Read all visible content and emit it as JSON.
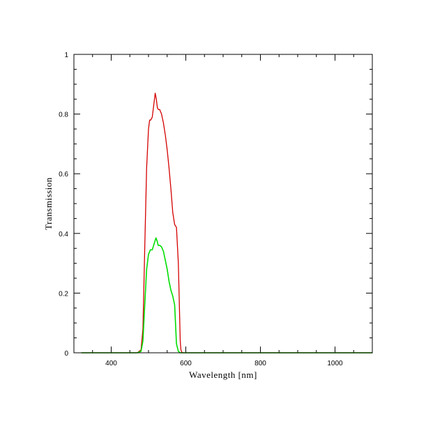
{
  "chart_data": {
    "type": "line",
    "title": "",
    "xlabel": "Wavelength [nm]",
    "ylabel": "Transmission",
    "xlim": [
      300,
      1100
    ],
    "ylim": [
      0,
      1
    ],
    "xticks": [
      400,
      600,
      800,
      1000
    ],
    "xtick_labels": [
      "400",
      "600",
      "800",
      "1000"
    ],
    "yticks": [
      0,
      0.2,
      0.4,
      0.6,
      0.8,
      1
    ],
    "ytick_labels": [
      "0",
      "0.2",
      "0.4",
      "0.6",
      "0.8",
      "1"
    ],
    "grid": false,
    "series": [
      {
        "color": "#d40000",
        "x": [
          320,
          470,
          480,
          485,
          490,
          495,
          500,
          503,
          506,
          510,
          514,
          518,
          521,
          524,
          527,
          530,
          535,
          540,
          545,
          550,
          555,
          560,
          565,
          570,
          575,
          580,
          585,
          587,
          590,
          593,
          600,
          1100
        ],
        "y": [
          0,
          0,
          0.01,
          0.08,
          0.35,
          0.62,
          0.75,
          0.78,
          0.78,
          0.79,
          0.83,
          0.87,
          0.85,
          0.82,
          0.815,
          0.815,
          0.8,
          0.77,
          0.73,
          0.68,
          0.62,
          0.55,
          0.47,
          0.43,
          0.42,
          0.3,
          0.04,
          0.01,
          0,
          0,
          0,
          0
        ]
      },
      {
        "color": "#00dd00",
        "x": [
          320,
          470,
          480,
          485,
          490,
          495,
          500,
          505,
          510,
          515,
          520,
          523,
          526,
          530,
          535,
          540,
          545,
          550,
          555,
          560,
          565,
          570,
          575,
          580,
          585,
          587,
          590,
          593,
          600,
          1100
        ],
        "y": [
          0,
          0,
          0.005,
          0.04,
          0.16,
          0.28,
          0.33,
          0.345,
          0.345,
          0.365,
          0.385,
          0.375,
          0.36,
          0.36,
          0.355,
          0.34,
          0.31,
          0.28,
          0.24,
          0.21,
          0.19,
          0.16,
          0.03,
          0.005,
          0,
          0,
          0,
          0,
          0,
          0
        ]
      }
    ]
  }
}
